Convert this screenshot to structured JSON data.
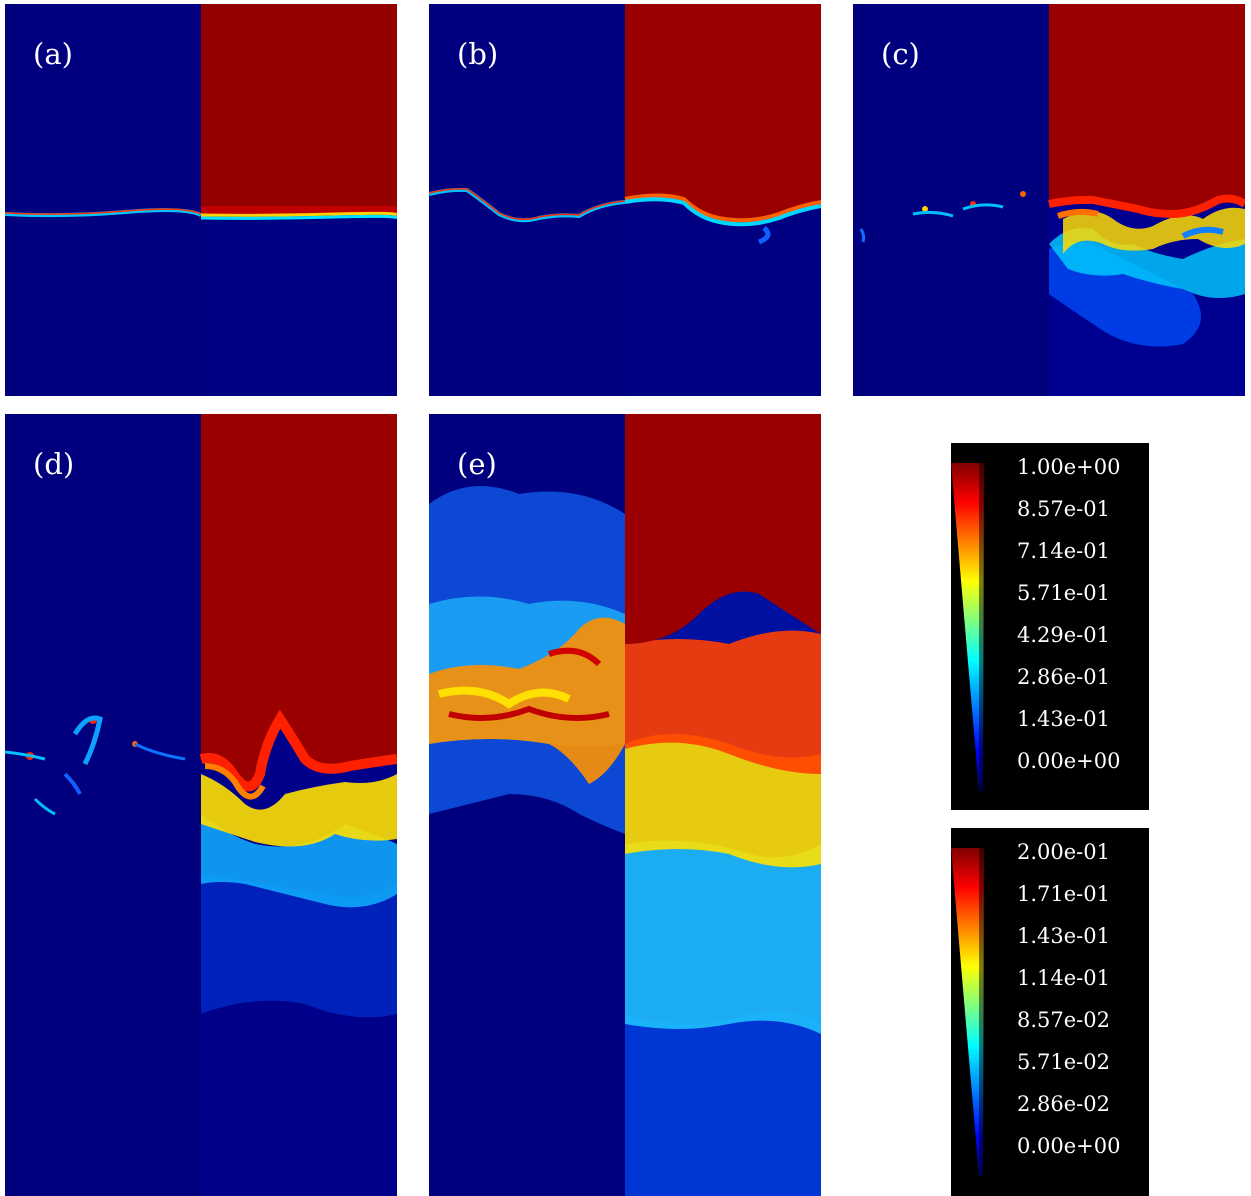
{
  "panels": [
    {
      "label": "(a)"
    },
    {
      "label": "(b)"
    },
    {
      "label": "(c)"
    },
    {
      "label": "(d)"
    },
    {
      "label": "(e)"
    }
  ],
  "colorbars": [
    {
      "ticks": [
        "1.00e+00",
        "8.57e-01",
        "7.14e-01",
        "5.71e-01",
        "4.29e-01",
        "2.86e-01",
        "1.43e-01",
        "0.00e+00"
      ]
    },
    {
      "ticks": [
        "2.00e-01",
        "1.71e-01",
        "1.43e-01",
        "1.14e-01",
        "8.57e-02",
        "5.71e-02",
        "2.86e-02",
        "0.00e+00"
      ]
    }
  ],
  "colors": {
    "dark_blue": "#000080",
    "dark_red": "#8b0000",
    "legend_bg": "#000000",
    "text": "#ffffff"
  }
}
